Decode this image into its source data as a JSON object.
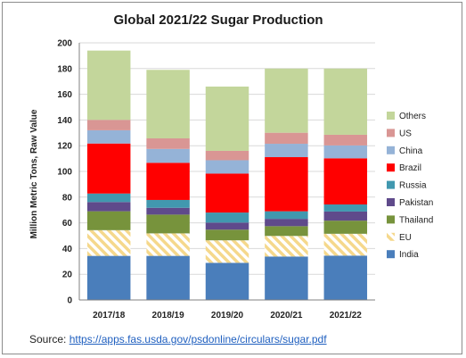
{
  "chart_data": {
    "type": "bar",
    "stacked": true,
    "title": "Global 2021/22 Sugar Production",
    "xlabel": "",
    "ylabel": "Million Metric Tons, Raw Value",
    "ylim": [
      0,
      200
    ],
    "yticks": [
      0,
      20,
      40,
      60,
      80,
      100,
      120,
      140,
      160,
      180,
      200
    ],
    "categories": [
      "2017/18",
      "2018/19",
      "2019/20",
      "2020/21",
      "2021/22"
    ],
    "legend_position": "right",
    "series": [
      {
        "name": "India",
        "color": "#4a7ebb",
        "values": [
          34.3,
          34.3,
          28.9,
          33.8,
          34.5
        ]
      },
      {
        "name": "EU",
        "color": "#f5d88c",
        "pattern": "hatch",
        "values": [
          20.0,
          17.5,
          17.5,
          16.0,
          17.0
        ]
      },
      {
        "name": "Thailand",
        "color": "#77933c",
        "values": [
          14.7,
          14.6,
          8.3,
          7.6,
          10.2
        ]
      },
      {
        "name": "Pakistan",
        "color": "#5f4a8b",
        "values": [
          7.2,
          5.3,
          5.5,
          5.7,
          7.1
        ]
      },
      {
        "name": "Russia",
        "color": "#4198af",
        "values": [
          6.6,
          6.1,
          7.8,
          5.9,
          5.5
        ]
      },
      {
        "name": "Brazil",
        "color": "#ff0000",
        "values": [
          38.9,
          28.9,
          30.3,
          42.1,
          35.9
        ]
      },
      {
        "name": "China",
        "color": "#95b3d7",
        "values": [
          10.3,
          10.8,
          10.4,
          10.4,
          10.0
        ]
      },
      {
        "name": "US",
        "color": "#d99694",
        "values": [
          8.1,
          8.2,
          7.3,
          8.6,
          8.3
        ]
      },
      {
        "name": "Others",
        "color": "#c3d69b",
        "values": [
          53.9,
          53.3,
          50.0,
          49.9,
          51.5
        ]
      }
    ]
  },
  "source": {
    "prefix": "Source: ",
    "link_text": "https://apps.fas.usda.gov/psdonline/circulars/sugar.pdf"
  }
}
